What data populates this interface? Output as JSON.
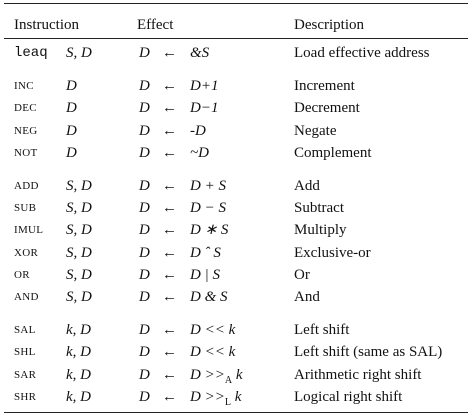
{
  "header": {
    "instruction": "Instruction",
    "effect": "Effect",
    "description": "Description"
  },
  "groups": [
    {
      "op_style": "mono",
      "rows": [
        {
          "op": "leaq",
          "operands": "S, D",
          "dest": "D",
          "arrow": "←",
          "expr": "&S",
          "desc": "Load effective address"
        }
      ]
    },
    {
      "op_style": "smallcaps",
      "rows": [
        {
          "op": "INC",
          "operands": "D",
          "dest": "D",
          "arrow": "←",
          "expr": "D+1",
          "desc": "Increment"
        },
        {
          "op": "DEC",
          "operands": "D",
          "dest": "D",
          "arrow": "←",
          "expr": "D−1",
          "desc": "Decrement"
        },
        {
          "op": "NEG",
          "operands": "D",
          "dest": "D",
          "arrow": "←",
          "expr": "-D",
          "desc": "Negate"
        },
        {
          "op": "NOT",
          "operands": "D",
          "dest": "D",
          "arrow": "←",
          "expr": "~D",
          "desc": "Complement"
        }
      ]
    },
    {
      "op_style": "smallcaps",
      "rows": [
        {
          "op": "ADD",
          "operands": "S, D",
          "dest": "D",
          "arrow": "←",
          "expr": "D + S",
          "desc": "Add"
        },
        {
          "op": "SUB",
          "operands": "S, D",
          "dest": "D",
          "arrow": "←",
          "expr": "D − S",
          "desc": "Subtract"
        },
        {
          "op": "IMUL",
          "operands": "S, D",
          "dest": "D",
          "arrow": "←",
          "expr": "D ∗ S",
          "desc": "Multiply"
        },
        {
          "op": "XOR",
          "operands": "S, D",
          "dest": "D",
          "arrow": "←",
          "expr": "D ˆ S",
          "desc": "Exclusive-or"
        },
        {
          "op": "OR",
          "operands": "S, D",
          "dest": "D",
          "arrow": "←",
          "expr": "D | S",
          "desc": "Or"
        },
        {
          "op": "AND",
          "operands": "S, D",
          "dest": "D",
          "arrow": "←",
          "expr": "D & S",
          "desc": "And"
        }
      ]
    },
    {
      "op_style": "smallcaps",
      "rows": [
        {
          "op": "SAL",
          "operands": "k, D",
          "dest": "D",
          "arrow": "←",
          "expr": "D << k",
          "desc": "Left shift"
        },
        {
          "op": "SHL",
          "operands": "k, D",
          "dest": "D",
          "arrow": "←",
          "expr": "D << k",
          "desc": "Left shift (same as SAL)"
        },
        {
          "op": "SAR",
          "operands": "k, D",
          "dest": "D",
          "arrow": "←",
          "expr": "D >>",
          "sub": "A",
          "tail": "k",
          "desc": "Arithmetic right shift"
        },
        {
          "op": "SHR",
          "operands": "k, D",
          "dest": "D",
          "arrow": "←",
          "expr": "D >>",
          "sub": "L",
          "tail": "k",
          "desc": "Logical right shift"
        }
      ]
    }
  ]
}
